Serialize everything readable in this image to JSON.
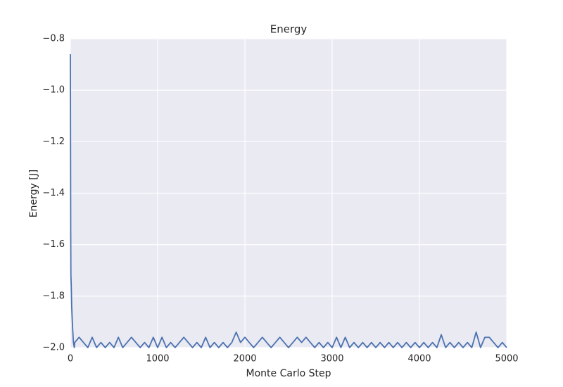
{
  "chart_data": {
    "type": "line",
    "title": "Energy",
    "xlabel": "Monte Carlo Step",
    "ylabel": "Energy [J]",
    "x": [
      0,
      2,
      4,
      6,
      10,
      15,
      25,
      35,
      45,
      50,
      100,
      150,
      200,
      250,
      300,
      350,
      400,
      450,
      500,
      550,
      600,
      650,
      700,
      750,
      800,
      850,
      900,
      950,
      1000,
      1050,
      1100,
      1150,
      1200,
      1250,
      1300,
      1350,
      1400,
      1450,
      1500,
      1550,
      1600,
      1650,
      1700,
      1750,
      1800,
      1850,
      1900,
      1950,
      2000,
      2050,
      2100,
      2150,
      2200,
      2250,
      2300,
      2350,
      2400,
      2450,
      2500,
      2550,
      2600,
      2650,
      2700,
      2750,
      2800,
      2850,
      2900,
      2950,
      3000,
      3050,
      3100,
      3150,
      3200,
      3250,
      3300,
      3350,
      3400,
      3450,
      3500,
      3550,
      3600,
      3650,
      3700,
      3750,
      3800,
      3850,
      3900,
      3950,
      4000,
      4050,
      4100,
      4150,
      4200,
      4250,
      4300,
      4350,
      4400,
      4450,
      4500,
      4550,
      4600,
      4650,
      4700,
      4750,
      4800,
      4850,
      4900,
      4950,
      5000
    ],
    "series": [
      {
        "color": "#4c72b0",
        "values": [
          -0.86,
          -1.2,
          -1.55,
          -1.72,
          -1.76,
          -1.84,
          -1.92,
          -1.98,
          -2.0,
          -1.98,
          -1.96,
          -1.98,
          -2.0,
          -1.96,
          -2.0,
          -1.98,
          -2.0,
          -1.98,
          -2.0,
          -1.96,
          -2.0,
          -1.98,
          -1.96,
          -1.98,
          -2.0,
          -1.98,
          -2.0,
          -1.96,
          -2.0,
          -1.96,
          -2.0,
          -1.98,
          -2.0,
          -1.98,
          -1.96,
          -1.98,
          -2.0,
          -1.98,
          -2.0,
          -1.96,
          -2.0,
          -1.98,
          -2.0,
          -1.98,
          -2.0,
          -1.98,
          -1.94,
          -1.98,
          -1.96,
          -1.98,
          -2.0,
          -1.98,
          -1.96,
          -1.98,
          -2.0,
          -1.98,
          -1.96,
          -1.98,
          -2.0,
          -1.98,
          -1.96,
          -1.98,
          -1.96,
          -1.98,
          -2.0,
          -1.98,
          -2.0,
          -1.98,
          -2.0,
          -1.96,
          -2.0,
          -1.96,
          -2.0,
          -1.98,
          -2.0,
          -1.98,
          -2.0,
          -1.98,
          -2.0,
          -1.98,
          -2.0,
          -1.98,
          -2.0,
          -1.98,
          -2.0,
          -1.98,
          -2.0,
          -1.98,
          -2.0,
          -1.98,
          -2.0,
          -1.98,
          -2.0,
          -1.95,
          -2.0,
          -1.98,
          -2.0,
          -1.98,
          -2.0,
          -1.98,
          -2.0,
          -1.94,
          -2.0,
          -1.96,
          -1.96,
          -1.98,
          -2.0,
          -1.98,
          -2.0
        ]
      }
    ],
    "xlim": [
      0,
      5000
    ],
    "xticks": [
      0,
      1000,
      2000,
      3000,
      4000,
      5000
    ],
    "ylim": [
      -2.0,
      -0.8
    ],
    "yticks": [
      {
        "value": -2.0,
        "label": "−2.0"
      },
      {
        "value": -1.8,
        "label": "−1.8"
      },
      {
        "value": -1.6,
        "label": "−1.6"
      },
      {
        "value": -1.4,
        "label": "−1.4"
      },
      {
        "value": -1.2,
        "label": "−1.2"
      },
      {
        "value": -1.0,
        "label": "−1.0"
      },
      {
        "value": -0.8,
        "label": "−0.8"
      }
    ],
    "grid": true,
    "background": "#eaeaf2"
  }
}
